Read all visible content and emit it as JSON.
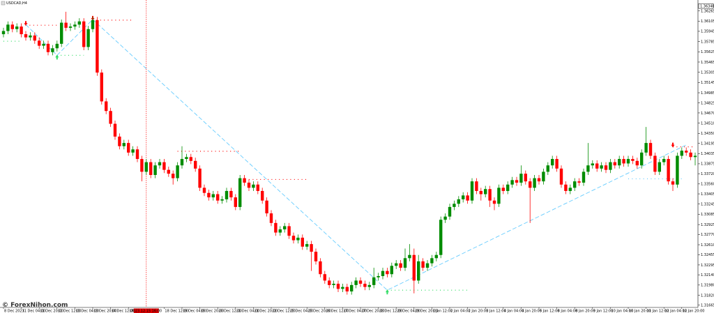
{
  "chart_data": {
    "type": "candlestick",
    "title": "USDCAD,H4",
    "watermark": "© ForexNihon.com",
    "crosshair_label": "2023.12.15 16:00",
    "price_marker": {
      "value": 1.3634,
      "label": "1.36340"
    },
    "up_color": "#008c00",
    "down_color": "#ff0000",
    "ylim": [
      1.3163,
      1.3638
    ],
    "yticks": [
      1.36265,
      1.36105,
      1.35945,
      1.35785,
      1.35625,
      1.35465,
      1.35305,
      1.35145,
      1.34985,
      1.34825,
      {
        "value": 1.3467,
        "label": "1.34670"
      },
      {
        "value": 1.3451,
        "label": "1.34510"
      },
      {
        "value": 1.3435,
        "label": "1.34350"
      },
      1.34195,
      1.34035,
      1.33875,
      {
        "value": 1.3372,
        "label": "1.33720"
      },
      {
        "value": 1.3356,
        "label": "1.33560"
      },
      1.33405,
      1.33245,
      1.33085,
      1.32925,
      {
        "value": 1.3277,
        "label": "1.32770"
      },
      {
        "value": 1.3261,
        "label": "1.32610"
      },
      1.32455,
      1.32295,
      {
        "value": 1.3214,
        "label": "1.32140"
      },
      {
        "value": 1.3198,
        "label": "1.31980"
      },
      {
        "value": 1.3182,
        "label": "1.31820"
      },
      1.31665
    ],
    "categories": [
      "8 Dec 2023",
      null,
      null,
      null,
      "11 Dec 04:00",
      null,
      null,
      null,
      "11 Dec 20:00",
      null,
      null,
      null,
      "12 Dec 12:00",
      null,
      null,
      null,
      "13 Dec 04:00",
      null,
      null,
      null,
      "13 Dec 20:00",
      null,
      null,
      null,
      "14 Dec 12:00",
      null,
      null,
      null,
      "15 Dec 04:00",
      null,
      null,
      null,
      null,
      null,
      null,
      null,
      "18 Dec 12:00",
      null,
      null,
      null,
      "19 Dec 04:00",
      null,
      null,
      null,
      "19 Dec 20:00",
      null,
      null,
      null,
      "20 Dec 12:00",
      null,
      null,
      null,
      "21 Dec 04:00",
      null,
      null,
      null,
      "21 Dec 20:00",
      null,
      null,
      null,
      "22 Dec 12:00",
      null,
      null,
      null,
      "25 Dec 04:00",
      null,
      null,
      null,
      "25 Dec 20:00",
      null,
      null,
      null,
      "26 Dec 12:00",
      null,
      null,
      null,
      "27 Dec 04:00",
      null,
      null,
      null,
      "27 Dec 20:00",
      null,
      null,
      null,
      "28 Dec 12:00",
      null,
      null,
      null,
      "29 Dec 04:00",
      null,
      null,
      null,
      "29 Dec 20:00",
      null,
      null,
      null,
      "1 Jan 12:00",
      null,
      null,
      null,
      "2 Jan 04:00",
      null,
      null,
      null,
      "2 Jan 20:00",
      null,
      null,
      null,
      "3 Jan 12:00",
      null,
      null,
      null,
      "4 Jan 04:00",
      null,
      null,
      null,
      "4 Jan 20:00",
      null,
      null,
      null,
      "5 Jan 12:00",
      null,
      null,
      null,
      "8 Jan 04:00",
      null,
      null,
      null,
      "8 Jan 20:00",
      null,
      null,
      null,
      "9 Jan 12:00",
      null,
      null,
      null,
      "10 Jan 04:00",
      null,
      null,
      null,
      "10 Jan 20:00",
      null,
      null,
      null,
      "11 Jan 12:00",
      null,
      null,
      null,
      "12 Jan 04:00",
      null,
      null,
      null,
      "12 Jan 20:00",
      null,
      null,
      null
    ],
    "open": [
      1.359,
      1.3595,
      1.3605,
      1.3598,
      1.3602,
      1.359,
      1.3585,
      1.3588,
      1.358,
      1.3572,
      1.3575,
      1.3562,
      1.3568,
      1.3575,
      1.3608,
      1.36,
      1.3602,
      1.3605,
      1.361,
      1.357,
      1.3598,
      1.3612,
      1.353,
      1.3485,
      1.347,
      1.345,
      1.343,
      1.3415,
      1.342,
      1.3405,
      1.341,
      1.3395,
      1.3375,
      1.339,
      1.337,
      1.3385,
      1.339,
      1.3378,
      1.3372,
      1.3365,
      1.3385,
      1.3395,
      1.3398,
      1.3392,
      1.338,
      1.335,
      1.3342,
      1.3335,
      1.334,
      1.333,
      1.3332,
      1.3345,
      1.3335,
      1.332,
      1.3365,
      1.3358,
      1.335,
      1.3355,
      1.3345,
      1.333,
      1.331,
      1.3295,
      1.328,
      1.3285,
      1.329,
      1.3275,
      1.3268,
      1.3272,
      1.3258,
      1.3262,
      1.325,
      1.3235,
      1.3215,
      1.3205,
      1.3198,
      1.32,
      1.3192,
      1.3195,
      1.3188,
      1.3198,
      1.3205,
      1.32,
      1.3195,
      1.3198,
      1.321,
      1.3212,
      1.322,
      1.3215,
      1.3228,
      1.3232,
      1.3225,
      1.324,
      1.3245,
      1.3205,
      1.3235,
      1.3225,
      1.3232,
      1.324,
      1.3245,
      1.33,
      1.3305,
      1.332,
      1.3325,
      1.3332,
      1.3338,
      1.333,
      1.336,
      1.3345,
      1.334,
      1.3348,
      1.333,
      1.3325,
      1.335,
      1.3345,
      1.3355,
      1.3362,
      1.3358,
      1.3372,
      1.336,
      1.335,
      1.3365,
      1.336,
      1.3375,
      1.3385,
      1.3395,
      1.338,
      1.3355,
      1.3345,
      1.335,
      1.336,
      1.3358,
      1.3375,
      1.3385,
      1.3388,
      1.338,
      1.3385,
      1.3378,
      1.339,
      1.3385,
      1.3395,
      1.3388,
      1.3395,
      1.3392,
      1.3385,
      1.3405,
      1.342,
      1.34,
      1.3375,
      1.339,
      1.3395,
      1.336,
      1.3355,
      1.34,
      1.3408,
      1.3405,
      1.3398
    ],
    "high": [
      1.36,
      1.361,
      1.361,
      1.3607,
      1.3607,
      1.3595,
      1.3593,
      1.3593,
      1.3585,
      1.358,
      1.358,
      1.3573,
      1.358,
      1.3613,
      1.3625,
      1.3607,
      1.361,
      1.3615,
      1.3615,
      1.3603,
      1.3617,
      1.3617,
      1.3535,
      1.349,
      1.3475,
      1.3455,
      1.3435,
      1.3425,
      1.3425,
      1.3415,
      1.3415,
      1.34,
      1.3395,
      1.3395,
      1.339,
      1.3395,
      1.3395,
      1.3383,
      1.3377,
      1.339,
      1.3415,
      1.3403,
      1.3403,
      1.3397,
      1.3385,
      1.3355,
      1.3347,
      1.3345,
      1.3345,
      1.3337,
      1.335,
      1.335,
      1.334,
      1.337,
      1.337,
      1.3363,
      1.336,
      1.336,
      1.335,
      1.3335,
      1.3315,
      1.33,
      1.329,
      1.3295,
      1.3295,
      1.328,
      1.3277,
      1.3277,
      1.3267,
      1.3267,
      1.3255,
      1.324,
      1.322,
      1.321,
      1.3205,
      1.3205,
      1.32,
      1.32,
      1.3203,
      1.321,
      1.321,
      1.3205,
      1.3203,
      1.3225,
      1.3217,
      1.3225,
      1.3225,
      1.3233,
      1.3237,
      1.3237,
      1.3255,
      1.3262,
      1.3255,
      1.3245,
      1.324,
      1.3237,
      1.3245,
      1.325,
      1.3305,
      1.331,
      1.3325,
      1.333,
      1.3337,
      1.3343,
      1.3343,
      1.3365,
      1.3365,
      1.335,
      1.3353,
      1.3353,
      1.3335,
      1.3355,
      1.3355,
      1.336,
      1.3367,
      1.3367,
      1.3385,
      1.3377,
      1.3365,
      1.337,
      1.337,
      1.338,
      1.339,
      1.34,
      1.34,
      1.3385,
      1.336,
      1.3355,
      1.3365,
      1.3365,
      1.338,
      1.342,
      1.3393,
      1.3393,
      1.339,
      1.339,
      1.3395,
      1.3395,
      1.34,
      1.34,
      1.34,
      1.34,
      1.3397,
      1.341,
      1.3445,
      1.3425,
      1.3405,
      1.3395,
      1.34,
      1.34,
      1.3365,
      1.3405,
      1.3413,
      1.3413,
      1.341,
      1.3405
    ],
    "low": [
      1.3585,
      1.359,
      1.3593,
      1.3593,
      1.3585,
      1.358,
      1.358,
      1.3575,
      1.3567,
      1.3567,
      1.3557,
      1.3557,
      1.3563,
      1.357,
      1.3595,
      1.3595,
      1.3597,
      1.36,
      1.3565,
      1.3565,
      1.3593,
      1.3525,
      1.348,
      1.3465,
      1.3445,
      1.3425,
      1.341,
      1.341,
      1.34,
      1.34,
      1.339,
      1.336,
      1.337,
      1.3365,
      1.3365,
      1.338,
      1.3373,
      1.3367,
      1.3355,
      1.336,
      1.338,
      1.339,
      1.3387,
      1.3375,
      1.3345,
      1.3337,
      1.333,
      1.333,
      1.3325,
      1.3325,
      1.3327,
      1.333,
      1.3315,
      1.3315,
      1.3353,
      1.3345,
      1.3345,
      1.334,
      1.3325,
      1.3305,
      1.329,
      1.3275,
      1.3275,
      1.328,
      1.327,
      1.3263,
      1.3263,
      1.3253,
      1.3253,
      1.322,
      1.323,
      1.321,
      1.32,
      1.3193,
      1.3193,
      1.3187,
      1.3187,
      1.3183,
      1.3183,
      1.3193,
      1.3195,
      1.319,
      1.319,
      1.3193,
      1.3205,
      1.3207,
      1.321,
      1.321,
      1.3223,
      1.322,
      1.322,
      1.3235,
      1.3185,
      1.32,
      1.322,
      1.322,
      1.3227,
      1.3235,
      1.324,
      1.3295,
      1.33,
      1.3315,
      1.332,
      1.3327,
      1.3325,
      1.3325,
      1.334,
      1.333,
      1.3335,
      1.332,
      1.3315,
      1.332,
      1.334,
      1.334,
      1.335,
      1.3353,
      1.3353,
      1.3355,
      1.3295,
      1.3345,
      1.3355,
      1.3355,
      1.337,
      1.338,
      1.3375,
      1.335,
      1.334,
      1.334,
      1.3345,
      1.3353,
      1.3353,
      1.337,
      1.338,
      1.3375,
      1.3375,
      1.3373,
      1.3373,
      1.338,
      1.338,
      1.3383,
      1.3383,
      1.3387,
      1.338,
      1.338,
      1.34,
      1.3395,
      1.337,
      1.337,
      1.3385,
      1.3355,
      1.3345,
      1.335,
      1.3395,
      1.34,
      1.3393,
      1.3385
    ],
    "close": [
      1.3595,
      1.3605,
      1.3598,
      1.3602,
      1.359,
      1.3585,
      1.3588,
      1.358,
      1.3572,
      1.3575,
      1.3562,
      1.3568,
      1.3575,
      1.3608,
      1.36,
      1.3602,
      1.3605,
      1.361,
      1.357,
      1.3598,
      1.3612,
      1.353,
      1.3485,
      1.347,
      1.345,
      1.343,
      1.3415,
      1.342,
      1.3405,
      1.341,
      1.3395,
      1.3375,
      1.339,
      1.337,
      1.3385,
      1.339,
      1.3378,
      1.3372,
      1.3365,
      1.3385,
      1.3395,
      1.3398,
      1.3392,
      1.338,
      1.335,
      1.3342,
      1.3335,
      1.334,
      1.333,
      1.3332,
      1.3345,
      1.3335,
      1.332,
      1.3365,
      1.3358,
      1.335,
      1.3355,
      1.3345,
      1.333,
      1.331,
      1.3295,
      1.328,
      1.3285,
      1.329,
      1.3275,
      1.3268,
      1.3272,
      1.3258,
      1.3262,
      1.325,
      1.3235,
      1.3215,
      1.3205,
      1.3198,
      1.32,
      1.3192,
      1.3195,
      1.3188,
      1.3198,
      1.3205,
      1.32,
      1.3195,
      1.3198,
      1.321,
      1.3212,
      1.322,
      1.3215,
      1.3228,
      1.3232,
      1.3225,
      1.324,
      1.3245,
      1.3205,
      1.3235,
      1.3225,
      1.3232,
      1.324,
      1.3245,
      1.33,
      1.3305,
      1.332,
      1.3325,
      1.3332,
      1.3338,
      1.333,
      1.336,
      1.3345,
      1.334,
      1.3348,
      1.333,
      1.3325,
      1.335,
      1.3345,
      1.3355,
      1.3362,
      1.3358,
      1.3372,
      1.336,
      1.335,
      1.3365,
      1.336,
      1.3375,
      1.3385,
      1.3395,
      1.338,
      1.3355,
      1.3345,
      1.335,
      1.336,
      1.3358,
      1.3375,
      1.3385,
      1.3388,
      1.338,
      1.3385,
      1.3378,
      1.339,
      1.3385,
      1.3395,
      1.3388,
      1.3395,
      1.3392,
      1.3385,
      1.3405,
      1.342,
      1.34,
      1.3375,
      1.339,
      1.3395,
      1.336,
      1.3355,
      1.34,
      1.3408,
      1.3405,
      1.3398,
      1.34
    ],
    "zigzag": {
      "color": "#66ccff",
      "x": [
        5,
        12,
        20,
        86,
        153
      ],
      "values": [
        1.3605,
        1.3557,
        1.3613,
        1.319,
        1.3417
      ]
    },
    "levels": [
      {
        "color": "#ff0000",
        "arrow": true,
        "from": 5,
        "to": 12,
        "value": 1.3604
      },
      {
        "color": "#ff0000",
        "arrow": true,
        "from": 20,
        "to": 29,
        "value": 1.3612
      },
      {
        "color": "#ff0000",
        "arrow": false,
        "from": 39,
        "to": 53,
        "value": 1.3407
      },
      {
        "color": "#ff0000",
        "arrow": false,
        "from": 55,
        "to": 68,
        "value": 1.3363
      },
      {
        "color": "#ff0000",
        "arrow": true,
        "from": 150,
        "to": 155,
        "value": 1.3414
      },
      {
        "color": "#33dd66",
        "arrow": false,
        "from": 0,
        "to": 4,
        "value": 1.3579
      },
      {
        "color": "#33dd66",
        "arrow": true,
        "from": 12,
        "to": 18,
        "value": 1.3557
      },
      {
        "color": "#33dd66",
        "arrow": true,
        "from": 86,
        "to": 104,
        "value": 1.319
      },
      {
        "color": "#66ccff",
        "arrow": false,
        "from": 140,
        "to": 152,
        "value": 1.3364
      }
    ]
  }
}
